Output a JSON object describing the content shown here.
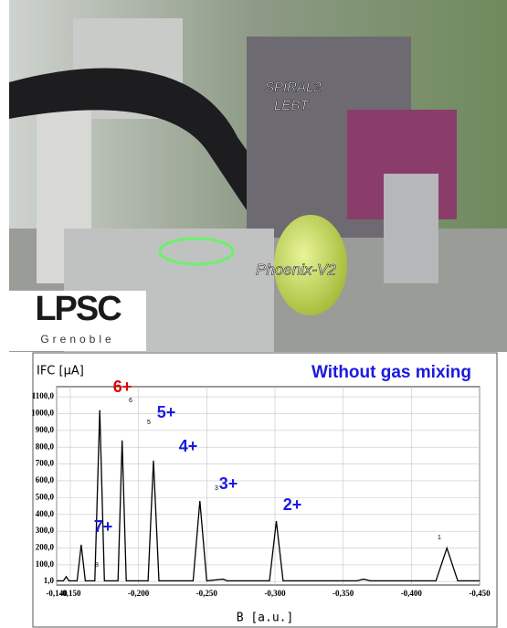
{
  "photo": {
    "beamline_label": [
      "SPIRAL2",
      "LEBT"
    ],
    "source_label": "Phoenix-V2",
    "logo": {
      "name": "LPSC",
      "city": "Grenoble"
    }
  },
  "chart_data": {
    "type": "line",
    "title": "Without gas mixing",
    "y_label": "IFC [µA]",
    "x_label": "B [a.u.]",
    "xlim": [
      -0.14,
      -0.45
    ],
    "xticks": [
      {
        "value": -0.14,
        "label": "-0,140"
      },
      {
        "value": -0.15,
        "label": "-0,150"
      },
      {
        "value": -0.2,
        "label": "-0,200"
      },
      {
        "value": -0.25,
        "label": "-0,250"
      },
      {
        "value": -0.3,
        "label": "-0,300"
      },
      {
        "value": -0.35,
        "label": "-0,350"
      },
      {
        "value": -0.4,
        "label": "-0,400"
      },
      {
        "value": -0.45,
        "label": "-0,450"
      }
    ],
    "ylim": [
      -20,
      1160
    ],
    "yticks": [
      {
        "value": 1,
        "label": "1,0"
      },
      {
        "value": 100,
        "label": "100,0"
      },
      {
        "value": 200,
        "label": "200,0"
      },
      {
        "value": 300,
        "label": "300,0"
      },
      {
        "value": 400,
        "label": "400,0"
      },
      {
        "value": 500,
        "label": "500,0"
      },
      {
        "value": 600,
        "label": "600,0"
      },
      {
        "value": 700,
        "label": "700,0"
      },
      {
        "value": 800,
        "label": "800,0"
      },
      {
        "value": 900,
        "label": "900,0"
      },
      {
        "value": 1000,
        "label": "1000,0"
      },
      {
        "value": 1100,
        "label": "1100,0"
      }
    ],
    "grid": true,
    "series": [
      {
        "color": "#000000",
        "x": [
          -0.14,
          -0.145,
          -0.147,
          -0.149,
          -0.155,
          -0.158,
          -0.161,
          -0.168,
          -0.1716,
          -0.175,
          -0.185,
          -0.188,
          -0.191,
          -0.207,
          -0.211,
          -0.215,
          -0.24,
          -0.245,
          -0.25,
          -0.262,
          -0.265,
          -0.296,
          -0.301,
          -0.306,
          -0.36,
          -0.365,
          -0.37,
          -0.418,
          -0.426,
          -0.434,
          -0.45
        ],
        "values": [
          5,
          5,
          30,
          5,
          5,
          220,
          5,
          5,
          1020,
          5,
          5,
          840,
          5,
          5,
          720,
          5,
          5,
          480,
          5,
          15,
          5,
          5,
          360,
          5,
          5,
          15,
          5,
          5,
          200,
          5,
          5
        ]
      }
    ],
    "charge_labels": [
      {
        "label": "6+",
        "color": "#e00000"
      },
      {
        "label": "5+",
        "color": "#1a1adf"
      },
      {
        "label": "4+",
        "color": "#1a1adf"
      },
      {
        "label": "3+",
        "color": "#1a1adf"
      },
      {
        "label": "2+",
        "color": "#1a1adf"
      },
      {
        "label": "7+",
        "color": "#1a1adf"
      }
    ],
    "peak_numbers": [
      "8",
      "6",
      "5",
      "3",
      "1"
    ]
  }
}
